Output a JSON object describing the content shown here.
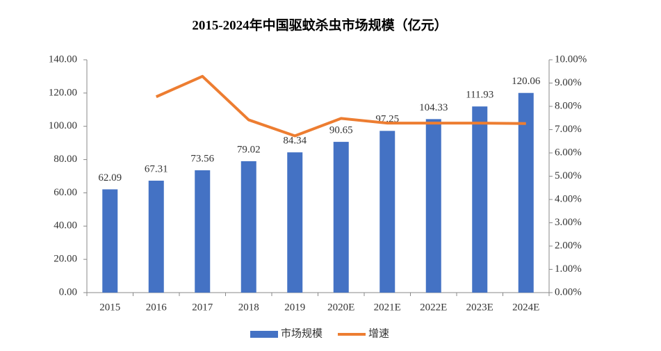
{
  "chart_data": {
    "type": "bar",
    "title": "2015-2024年中国驱蚊杀虫市场规模（亿元）",
    "categories": [
      "2015",
      "2016",
      "2017",
      "2018",
      "2019",
      "2020E",
      "2021E",
      "2022E",
      "2023E",
      "2024E"
    ],
    "series": [
      {
        "name": "市场规模",
        "type": "bar",
        "color": "#4472c4",
        "values": [
          62.09,
          67.31,
          73.56,
          79.02,
          84.34,
          90.65,
          97.25,
          104.33,
          111.93,
          120.06
        ]
      },
      {
        "name": "增速",
        "type": "line",
        "axis": "y2",
        "color": "#ed7d31",
        "values": [
          null,
          8.41,
          9.29,
          7.42,
          6.73,
          7.48,
          7.28,
          7.28,
          7.28,
          7.26
        ]
      }
    ],
    "ylim": [
      0,
      140
    ],
    "yticks": [
      {
        "value": 0,
        "label": "0.00"
      },
      {
        "value": 20,
        "label": "20.00"
      },
      {
        "value": 40,
        "label": "40.00"
      },
      {
        "value": 60,
        "label": "60.00"
      },
      {
        "value": 80,
        "label": "80.00"
      },
      {
        "value": 100,
        "label": "100.00"
      },
      {
        "value": 120,
        "label": "120.00"
      },
      {
        "value": 140,
        "label": "140.00"
      }
    ],
    "y2lim": [
      0,
      10
    ],
    "y2ticks": [
      {
        "value": 0,
        "label": "0.00%"
      },
      {
        "value": 1,
        "label": "1.00%"
      },
      {
        "value": 2,
        "label": "2.00%"
      },
      {
        "value": 3,
        "label": "3.00%"
      },
      {
        "value": 4,
        "label": "4.00%"
      },
      {
        "value": 5,
        "label": "5.00%"
      },
      {
        "value": 6,
        "label": "6.00%"
      },
      {
        "value": 7,
        "label": "7.00%"
      },
      {
        "value": 8,
        "label": "8.00%"
      },
      {
        "value": 9,
        "label": "9.00%"
      },
      {
        "value": 10,
        "label": "10.00%"
      }
    ],
    "legend": "bottom"
  }
}
